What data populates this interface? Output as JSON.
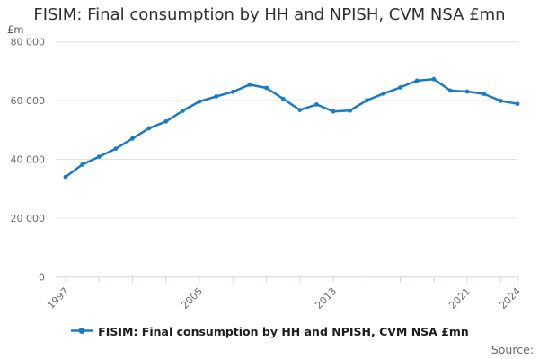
{
  "chart": {
    "title": "FISIM: Final consumption by HH and NPISH, CVM NSA £mn",
    "y_unit_label": "£m",
    "legend": {
      "label": "FISIM: Final consumption by HH and NPISH, CVM NSA £mn",
      "marker": "line-with-dot-icon"
    },
    "source_label": "Source:",
    "colors": {
      "line": "#1a7bc4",
      "title_text": "#2f2f2f",
      "axis_text": "#6b6b6b",
      "unit_text": "#595959",
      "gridline": "#e2e2e2",
      "axis_line": "#ccd6eb",
      "legend_text": "#1d1d1d",
      "source_text": "#666666"
    }
  },
  "chart_data": {
    "type": "line",
    "title": "FISIM: Final consumption by HH and NPISH, CVM NSA £mn",
    "xlabel": "",
    "ylabel": "£m",
    "ylim": [
      0,
      80000
    ],
    "xlim": [
      1997,
      2024
    ],
    "grid": true,
    "legend_position": "bottom",
    "x": [
      1997,
      1998,
      1999,
      2000,
      2001,
      2002,
      2003,
      2004,
      2005,
      2006,
      2007,
      2008,
      2009,
      2010,
      2011,
      2012,
      2013,
      2014,
      2015,
      2016,
      2017,
      2018,
      2019,
      2020,
      2021,
      2022,
      2023,
      2024
    ],
    "series": [
      {
        "name": "FISIM: Final consumption by HH and NPISH, CVM NSA £mn",
        "values": [
          34000,
          38200,
          40900,
          43600,
          47100,
          50600,
          52900,
          56500,
          59700,
          61400,
          63000,
          65400,
          64300,
          60600,
          56800,
          58700,
          56300,
          56600,
          60100,
          62400,
          64500,
          66800,
          67300,
          63400,
          63100,
          62300,
          59900,
          58900
        ]
      }
    ],
    "y_ticks": [
      {
        "value": 0,
        "label": "0"
      },
      {
        "value": 20000,
        "label": "20 000"
      },
      {
        "value": 40000,
        "label": "40 000"
      },
      {
        "value": 60000,
        "label": "60 000"
      },
      {
        "value": 80000,
        "label": "80 000"
      }
    ],
    "x_minor_tick_years": [
      1997,
      1999,
      2001,
      2003,
      2005,
      2007,
      2009,
      2011,
      2013,
      2015,
      2017,
      2019,
      2021,
      2023,
      2024
    ],
    "x_labeled_ticks": [
      {
        "year": 1997,
        "label": "1997"
      },
      {
        "year": 2005,
        "label": "2005"
      },
      {
        "year": 2013,
        "label": "2013"
      },
      {
        "year": 2021,
        "label": "2021"
      },
      {
        "year": 2024,
        "label": "2024"
      }
    ]
  }
}
